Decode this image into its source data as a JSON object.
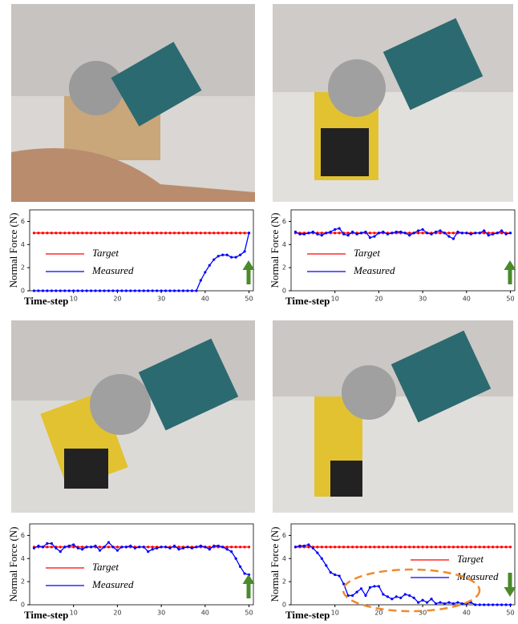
{
  "chart_data": [
    {
      "type": "line",
      "y_label": "Normal Force (N)",
      "x_label": "Time-step",
      "xlim": [
        0,
        51
      ],
      "ylim": [
        0,
        7
      ],
      "xticks": [
        10,
        20,
        30,
        40,
        50
      ],
      "yticks": [
        0,
        2,
        4,
        6
      ],
      "legend": "lower left",
      "x": [
        1,
        2,
        3,
        4,
        5,
        6,
        7,
        8,
        9,
        10,
        11,
        12,
        13,
        14,
        15,
        16,
        17,
        18,
        19,
        20,
        21,
        22,
        23,
        24,
        25,
        26,
        27,
        28,
        29,
        30,
        31,
        32,
        33,
        34,
        35,
        36,
        37,
        38,
        39,
        40,
        41,
        42,
        43,
        44,
        45,
        46,
        47,
        48,
        49,
        50
      ],
      "series": [
        {
          "name": "Target",
          "color": "#ff0000",
          "values": [
            5,
            5,
            5,
            5,
            5,
            5,
            5,
            5,
            5,
            5,
            5,
            5,
            5,
            5,
            5,
            5,
            5,
            5,
            5,
            5,
            5,
            5,
            5,
            5,
            5,
            5,
            5,
            5,
            5,
            5,
            5,
            5,
            5,
            5,
            5,
            5,
            5,
            5,
            5,
            5,
            5,
            5,
            5,
            5,
            5,
            5,
            5,
            5,
            5,
            5
          ]
        },
        {
          "name": "Measured",
          "color": "#0000ff",
          "values": [
            0,
            0,
            0,
            0,
            0,
            0,
            0,
            0,
            0,
            0,
            0,
            0,
            0,
            0,
            0,
            0,
            0,
            0,
            0,
            0,
            0,
            0,
            0,
            0,
            0,
            0,
            0,
            0,
            0,
            0,
            0,
            0,
            0,
            0,
            0,
            0,
            0,
            0,
            0.9,
            1.6,
            2.2,
            2.7,
            3.0,
            3.1,
            3.1,
            2.9,
            2.9,
            3.1,
            3.4,
            5.0
          ]
        }
      ]
    },
    {
      "type": "line",
      "y_label": "Normal Force (N)",
      "x_label": "Time-step",
      "xlim": [
        0,
        51
      ],
      "ylim": [
        0,
        7
      ],
      "xticks": [
        10,
        20,
        30,
        40,
        50
      ],
      "yticks": [
        0,
        2,
        4,
        6
      ],
      "legend": "lower left",
      "x": [
        1,
        2,
        3,
        4,
        5,
        6,
        7,
        8,
        9,
        10,
        11,
        12,
        13,
        14,
        15,
        16,
        17,
        18,
        19,
        20,
        21,
        22,
        23,
        24,
        25,
        26,
        27,
        28,
        29,
        30,
        31,
        32,
        33,
        34,
        35,
        36,
        37,
        38,
        39,
        40,
        41,
        42,
        43,
        44,
        45,
        46,
        47,
        48,
        49,
        50
      ],
      "series": [
        {
          "name": "Target",
          "color": "#ff0000",
          "values": [
            5,
            5,
            5,
            5,
            5,
            5,
            5,
            5,
            5,
            5,
            5,
            5,
            5,
            5,
            5,
            5,
            5,
            5,
            5,
            5,
            5,
            5,
            5,
            5,
            5,
            5,
            5,
            5,
            5,
            5,
            5,
            5,
            5,
            5,
            5,
            5,
            5,
            5,
            5,
            5,
            5,
            5,
            5,
            5,
            5,
            5,
            5,
            5,
            5,
            5
          ]
        },
        {
          "name": "Measured",
          "color": "#0000ff",
          "values": [
            5.1,
            4.9,
            4.9,
            5.0,
            5.1,
            4.9,
            4.8,
            5.0,
            5.1,
            5.3,
            5.4,
            4.9,
            4.8,
            5.1,
            4.9,
            5.0,
            5.1,
            4.6,
            4.7,
            5.0,
            5.1,
            4.9,
            5.0,
            5.1,
            5.1,
            5.0,
            4.8,
            5.0,
            5.2,
            5.3,
            5.0,
            4.9,
            5.1,
            5.2,
            5.0,
            4.7,
            4.5,
            5.1,
            5.0,
            5.0,
            4.9,
            5.0,
            5.0,
            5.2,
            4.8,
            4.9,
            5.0,
            5.2,
            4.9,
            5.0
          ]
        }
      ]
    },
    {
      "type": "line",
      "y_label": "Normal Force (N)",
      "x_label": "Time-step",
      "xlim": [
        0,
        51
      ],
      "ylim": [
        0,
        7
      ],
      "xticks": [
        10,
        20,
        30,
        40,
        50
      ],
      "yticks": [
        0,
        2,
        4,
        6
      ],
      "legend": "lower left",
      "x": [
        1,
        2,
        3,
        4,
        5,
        6,
        7,
        8,
        9,
        10,
        11,
        12,
        13,
        14,
        15,
        16,
        17,
        18,
        19,
        20,
        21,
        22,
        23,
        24,
        25,
        26,
        27,
        28,
        29,
        30,
        31,
        32,
        33,
        34,
        35,
        36,
        37,
        38,
        39,
        40,
        41,
        42,
        43,
        44,
        45,
        46,
        47,
        48,
        49,
        50
      ],
      "series": [
        {
          "name": "Target",
          "color": "#ff0000",
          "values": [
            5,
            5,
            5,
            5,
            5,
            5,
            5,
            5,
            5,
            5,
            5,
            5,
            5,
            5,
            5,
            5,
            5,
            5,
            5,
            5,
            5,
            5,
            5,
            5,
            5,
            5,
            5,
            5,
            5,
            5,
            5,
            5,
            5,
            5,
            5,
            5,
            5,
            5,
            5,
            5,
            5,
            5,
            5,
            5,
            5,
            5,
            5,
            5,
            5,
            5
          ]
        },
        {
          "name": "Measured",
          "color": "#0000ff",
          "values": [
            4.9,
            5.1,
            5.0,
            5.3,
            5.3,
            4.9,
            4.6,
            5.0,
            5.1,
            5.2,
            4.9,
            4.8,
            5.0,
            5.0,
            5.1,
            4.7,
            5.0,
            5.4,
            5.0,
            4.7,
            5.0,
            5.0,
            5.1,
            4.9,
            5.0,
            5.0,
            4.6,
            4.8,
            4.9,
            5.0,
            5.0,
            4.9,
            5.1,
            4.8,
            4.9,
            5.0,
            4.9,
            5.0,
            5.1,
            5.0,
            4.8,
            5.1,
            5.1,
            5.0,
            4.8,
            4.6,
            4.0,
            3.3,
            2.7,
            2.6
          ]
        }
      ]
    },
    {
      "type": "line",
      "y_label": "Normal Force (N)",
      "x_label": "Time-step",
      "xlim": [
        0,
        51
      ],
      "ylim": [
        0,
        7
      ],
      "xticks": [
        10,
        20,
        30,
        40,
        50
      ],
      "yticks": [
        0,
        2,
        4,
        6
      ],
      "legend": "center right",
      "x": [
        1,
        2,
        3,
        4,
        5,
        6,
        7,
        8,
        9,
        10,
        11,
        12,
        13,
        14,
        15,
        16,
        17,
        18,
        19,
        20,
        21,
        22,
        23,
        24,
        25,
        26,
        27,
        28,
        29,
        30,
        31,
        32,
        33,
        34,
        35,
        36,
        37,
        38,
        39,
        40,
        41,
        42,
        43,
        44,
        45,
        46,
        47,
        48,
        49,
        50
      ],
      "series": [
        {
          "name": "Target",
          "color": "#ff0000",
          "values": [
            5,
            5,
            5,
            5,
            5,
            5,
            5,
            5,
            5,
            5,
            5,
            5,
            5,
            5,
            5,
            5,
            5,
            5,
            5,
            5,
            5,
            5,
            5,
            5,
            5,
            5,
            5,
            5,
            5,
            5,
            5,
            5,
            5,
            5,
            5,
            5,
            5,
            5,
            5,
            5,
            5,
            5,
            5,
            5,
            5,
            5,
            5,
            5,
            5,
            5
          ]
        },
        {
          "name": "Measured",
          "color": "#0000ff",
          "values": [
            5.0,
            5.1,
            5.1,
            5.2,
            4.9,
            4.5,
            4.0,
            3.4,
            2.8,
            2.6,
            2.5,
            1.8,
            0.8,
            0.8,
            1.1,
            1.4,
            0.8,
            1.5,
            1.6,
            1.6,
            0.9,
            0.7,
            0.5,
            0.7,
            0.6,
            0.9,
            0.8,
            0.6,
            0.2,
            0.4,
            0.2,
            0.5,
            0.1,
            0.2,
            0.1,
            0.2,
            0.1,
            0.2,
            0.1,
            0.1,
            0.2,
            0,
            0,
            0,
            0,
            0,
            0,
            0,
            0,
            0
          ]
        }
      ]
    }
  ]
}
